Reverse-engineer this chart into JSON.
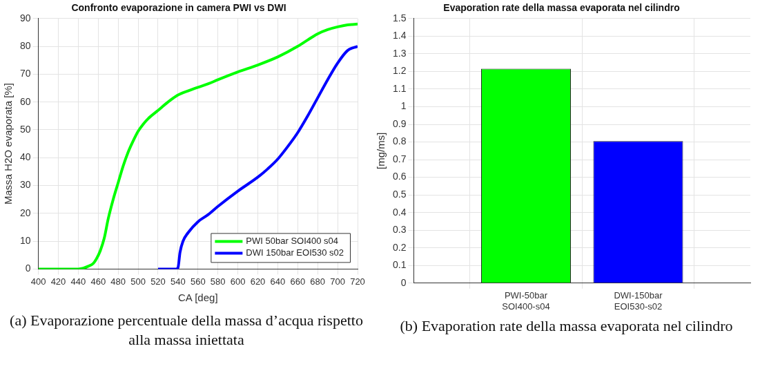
{
  "chart_data": [
    {
      "type": "line",
      "title": "Confronto evaporazione in camera PWI vs DWI",
      "xlabel": "CA [deg]",
      "ylabel": "Massa H2O evaporata [%]",
      "xlim": [
        400,
        720
      ],
      "xticks": [
        400,
        420,
        440,
        460,
        480,
        500,
        520,
        540,
        560,
        580,
        600,
        620,
        640,
        660,
        680,
        700,
        720
      ],
      "ylim": [
        0,
        90
      ],
      "yticks": [
        0,
        10,
        20,
        30,
        40,
        50,
        60,
        70,
        80,
        90
      ],
      "grid": true,
      "legend": "bottom right",
      "marker": "none",
      "line_style": "solid",
      "series": [
        {
          "name": "PWI 50bar SOI400 s04",
          "color": "#00ff00",
          "x": [
            400,
            440,
            445,
            450,
            455,
            458,
            462,
            466,
            470,
            475,
            480,
            485,
            490,
            495,
            500,
            505,
            510,
            520,
            530,
            540,
            550,
            560,
            570,
            580,
            600,
            620,
            640,
            660,
            670,
            680,
            690,
            700,
            710,
            720
          ],
          "values": [
            0,
            0,
            0.3,
            1,
            2,
            3.5,
            6.5,
            11,
            18,
            25,
            31,
            37,
            42,
            46,
            49.5,
            52,
            54,
            57,
            60,
            62.5,
            64,
            65.3,
            66.5,
            68,
            70.8,
            73.3,
            76.2,
            80,
            82.3,
            84.5,
            86,
            87,
            87.7,
            88
          ]
        },
        {
          "name": "DWI 150bar EOI530 s02",
          "color": "#0000ff",
          "x": [
            520,
            538,
            540,
            542,
            545,
            550,
            560,
            570,
            580,
            600,
            620,
            630,
            640,
            650,
            660,
            670,
            680,
            690,
            700,
            710,
            720
          ],
          "values": [
            0,
            0,
            0.5,
            6,
            10,
            13,
            17,
            19.5,
            22.5,
            28,
            33,
            36,
            39.5,
            44,
            49,
            55,
            61.5,
            68,
            74,
            78.5,
            80
          ]
        }
      ],
      "annotations": [
        "(a) Evaporazione percentuale della massa d’acqua rispetto alla massa iniettata"
      ]
    },
    {
      "type": "bar",
      "title": "Evaporation rate della massa evaporata nel cilindro",
      "ylabel": "[mg/ms]",
      "categories": [
        "PWI-50bar\nSOI400-s04",
        "DWI-150bar\nEOI530-s02"
      ],
      "values": [
        1.215,
        0.805
      ],
      "colors": [
        "#00ff00",
        "#0000ff"
      ],
      "ylim": [
        0,
        1.5
      ],
      "yticks": [
        0,
        0.1,
        0.2,
        0.3,
        0.4,
        0.5,
        0.6,
        0.7,
        0.8,
        0.9,
        1,
        1.1,
        1.2,
        1.3,
        1.4,
        1.5
      ],
      "grid": true,
      "annotations": [
        "(b) Evaporation rate della massa evaporata nel cilindro"
      ]
    }
  ]
}
